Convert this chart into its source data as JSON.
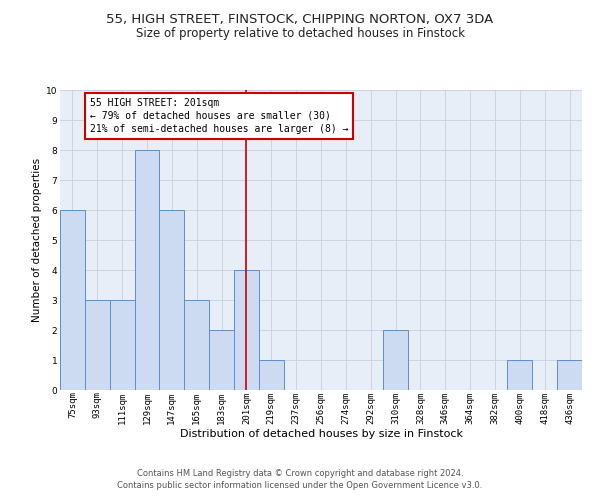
{
  "title1": "55, HIGH STREET, FINSTOCK, CHIPPING NORTON, OX7 3DA",
  "title2": "Size of property relative to detached houses in Finstock",
  "xlabel": "Distribution of detached houses by size in Finstock",
  "ylabel": "Number of detached properties",
  "bins": [
    "75sqm",
    "93sqm",
    "111sqm",
    "129sqm",
    "147sqm",
    "165sqm",
    "183sqm",
    "201sqm",
    "219sqm",
    "237sqm",
    "256sqm",
    "274sqm",
    "292sqm",
    "310sqm",
    "328sqm",
    "346sqm",
    "364sqm",
    "382sqm",
    "400sqm",
    "418sqm",
    "436sqm"
  ],
  "values": [
    6,
    3,
    3,
    8,
    6,
    3,
    2,
    4,
    1,
    0,
    0,
    0,
    0,
    2,
    0,
    0,
    0,
    0,
    1,
    0,
    1
  ],
  "bar_color": "#ccdaf2",
  "bar_edge_color": "#5b8fc9",
  "highlight_bin_index": 7,
  "highlight_line_color": "#cc0000",
  "annotation_text": "55 HIGH STREET: 201sqm\n← 79% of detached houses are smaller (30)\n21% of semi-detached houses are larger (8) →",
  "annotation_box_color": "#cc0000",
  "ylim": [
    0,
    10
  ],
  "yticks": [
    0,
    1,
    2,
    3,
    4,
    5,
    6,
    7,
    8,
    9,
    10
  ],
  "grid_color": "#c8d0dc",
  "background_color": "#e8eef8",
  "footer1": "Contains HM Land Registry data © Crown copyright and database right 2024.",
  "footer2": "Contains public sector information licensed under the Open Government Licence v3.0.",
  "title1_fontsize": 9.5,
  "title2_fontsize": 8.5,
  "xlabel_fontsize": 8,
  "ylabel_fontsize": 7.5,
  "tick_fontsize": 6.5,
  "annotation_fontsize": 7,
  "footer_fontsize": 6
}
